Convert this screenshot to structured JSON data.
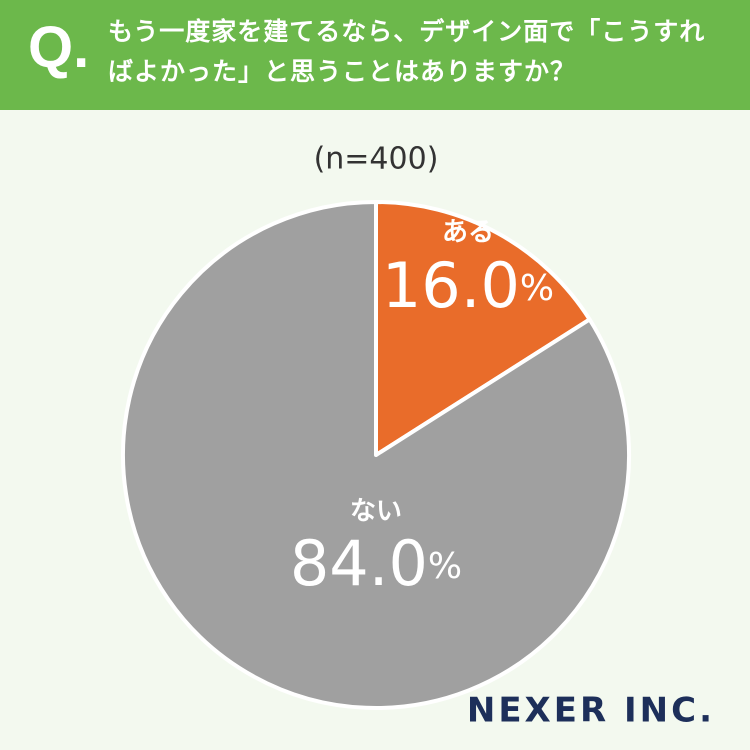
{
  "question_label": "Q.",
  "chart_data": {
    "type": "pie",
    "title": "もう一度家を建てるなら、デザイン面で「こうすればよかった」と思うことはありますか？",
    "subtitle": "(n=400)",
    "categories": [
      "ある",
      "ない"
    ],
    "values": [
      16.0,
      84.0
    ],
    "value_labels": [
      "16.0%",
      "84.0%"
    ],
    "colors": [
      "#e96c2a",
      "#a0a0a0"
    ]
  },
  "logo": "NEXER INC."
}
